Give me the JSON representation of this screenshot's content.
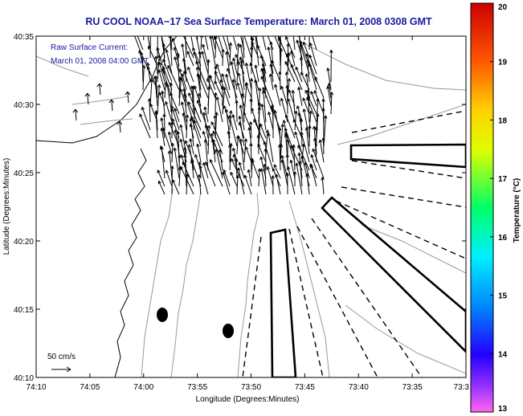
{
  "chart_data": {
    "type": "vector-field-map",
    "title": "RU COOL  NOAA−17 Sea Surface Temperature:  March 01, 2008 0308 GMT",
    "legend": [
      "Raw Surface Current:",
      "March 01, 2008 04:00 GMT"
    ],
    "xlabel": "Longitude (Degrees:Minutes)",
    "ylabel": "Latitude (Degrees:Minutes)",
    "x_ticks": [
      "74:10",
      "74:05",
      "74:00",
      "73:55",
      "73:50",
      "73:45",
      "73:40",
      "73:35",
      "73:3"
    ],
    "y_ticks": [
      "40:10",
      "40:15",
      "40:20",
      "40:25",
      "40:30",
      "40:35"
    ],
    "xlim_minutes_west": [
      70,
      30
    ],
    "ylim_minutes_north": [
      10,
      35
    ],
    "scale_label": "50 cm/s",
    "scale_vector_cm_s": 50,
    "colorbar": {
      "label": "Temperature (°C)",
      "min": 13,
      "max": 20,
      "ticks": [
        "13",
        "14",
        "15",
        "16",
        "17",
        "18",
        "19",
        "20"
      ]
    },
    "vector_field": {
      "dominant_direction": "north-northwest",
      "speed_range_cm_s": [
        20,
        60
      ]
    }
  }
}
